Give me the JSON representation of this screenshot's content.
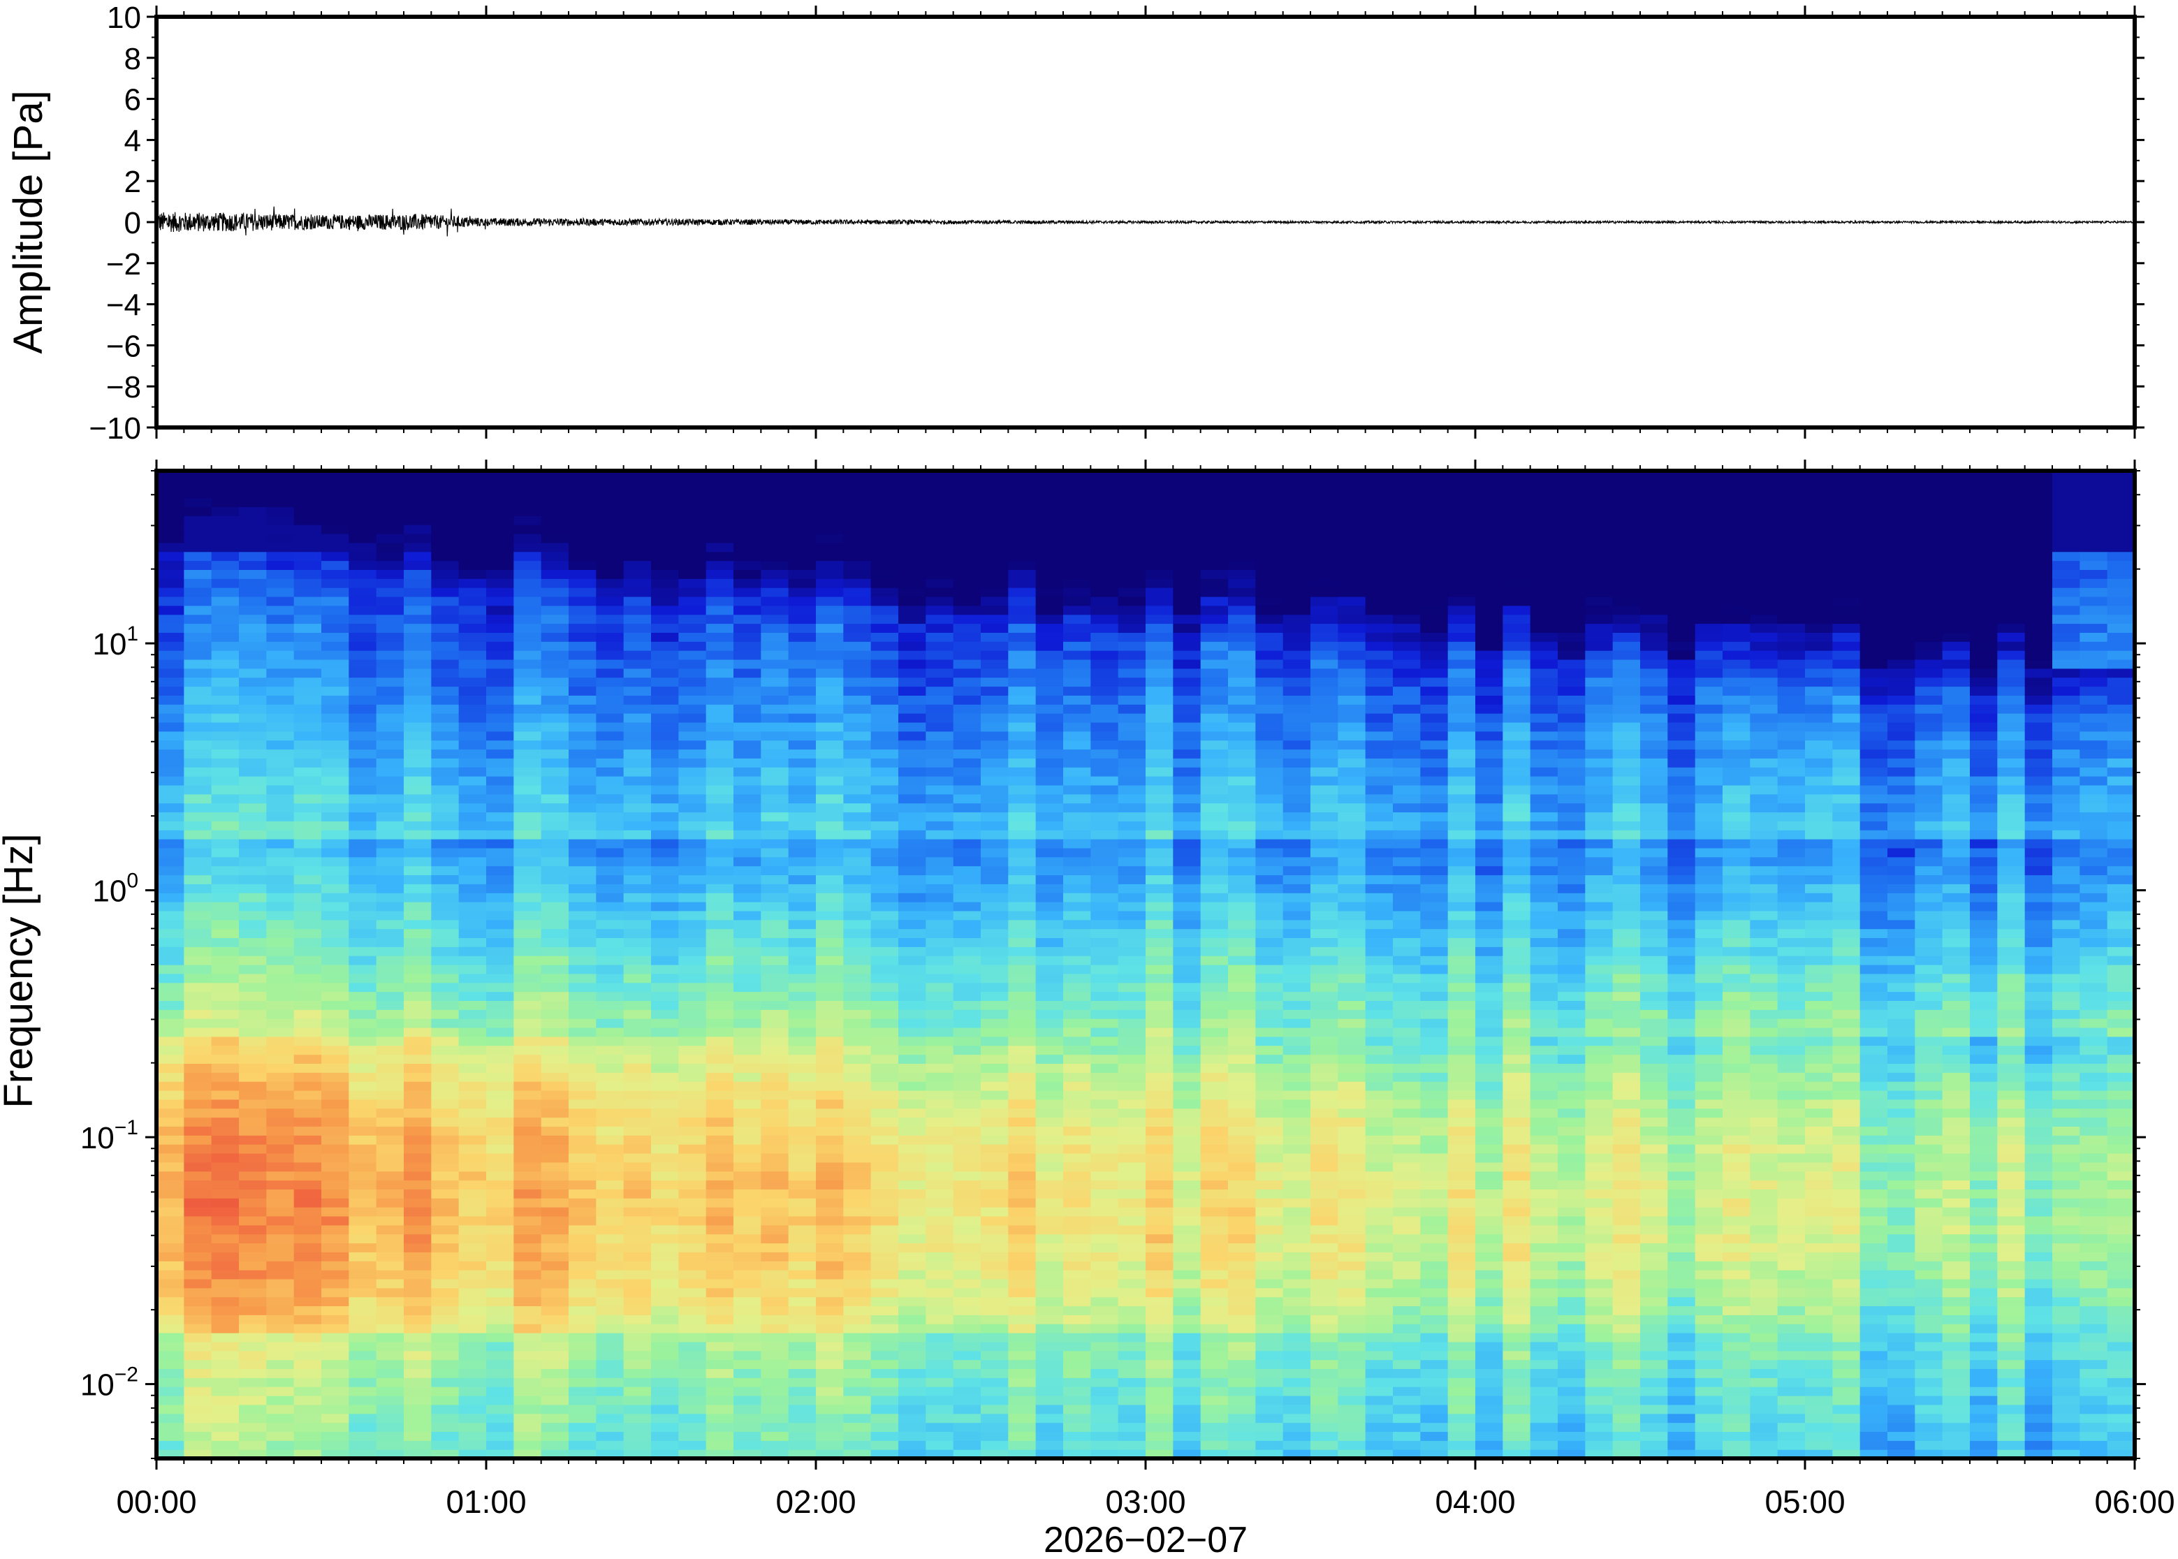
{
  "chart_data": [
    {
      "type": "line",
      "title": "",
      "ylabel": "Amplitude [Pa]",
      "xlabel": "2026−02−07",
      "xlim_hours": [
        0,
        6
      ],
      "ylim": [
        -10,
        10
      ],
      "yticks": [
        10,
        8,
        6,
        4,
        2,
        0,
        -2,
        -4,
        -6,
        -8,
        -10
      ],
      "ytick_labels": [
        "10",
        "8",
        "6",
        "4",
        "2",
        "0",
        "−2",
        "−4",
        "−6",
        "−8",
        "−10"
      ],
      "grid": false,
      "series": [
        {
          "color": "#000000",
          "baseline": 0,
          "envelope_hours": [
            0.0,
            0.25,
            0.5,
            0.8,
            1.0,
            2.0,
            3.0,
            6.0
          ],
          "envelope_pa": [
            0.5,
            0.45,
            0.35,
            0.4,
            0.2,
            0.12,
            0.06,
            0.05
          ]
        }
      ]
    },
    {
      "type": "heatmap",
      "title": "",
      "ylabel": "Frequency [Hz]",
      "xlabel": "2026−02−07",
      "xlim_hours": [
        0,
        6
      ],
      "ylim": [
        0.005,
        50
      ],
      "yscale": "log",
      "yticks": [
        0.01,
        0.1,
        1,
        10
      ],
      "ytick_labels": [
        {
          "base": "10",
          "exp": "−2"
        },
        {
          "base": "10",
          "exp": "−1"
        },
        {
          "base": "10",
          "exp": "0"
        },
        {
          "base": "10",
          "exp": "1"
        }
      ],
      "colormap": [
        "#0b0377",
        "#0e1bd6",
        "#1e6ff0",
        "#39b4fb",
        "#5fe2e6",
        "#9cf29c",
        "#e3f08a",
        "#fbd46b",
        "#f79a4a",
        "#ee5a3e"
      ],
      "grid": false,
      "time_blocks": 72
    }
  ],
  "x_axis": {
    "tick_hours": [
      0,
      1,
      2,
      3,
      4,
      5,
      6
    ],
    "tick_labels": [
      "00:00",
      "01:00",
      "02:00",
      "03:00",
      "04:00",
      "05:00",
      "06:00"
    ],
    "date_label": "2026−02−07"
  }
}
